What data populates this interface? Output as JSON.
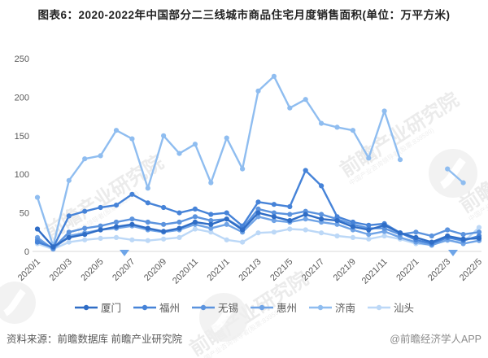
{
  "title": "图表6：2020-2022年中国部分二三线城市商品住宅月度销售面积(单位：万平方米)",
  "footer": {
    "source": "资料来源：前瞻数据库 前瞻产业研究院",
    "credit": "@前瞻经济学人APP"
  },
  "watermark": {
    "main": "前瞻产业研究院",
    "sub": "中国产业咨询领导者(股票:839599)"
  },
  "chart_data": {
    "type": "line",
    "x": [
      "2020/1",
      "2020/2",
      "2020/3",
      "2020/4",
      "2020/5",
      "2020/6",
      "2020/7",
      "2020/8",
      "2020/9",
      "2020/10",
      "2020/11",
      "2020/12",
      "2021/1",
      "2021/2",
      "2021/3",
      "2021/4",
      "2021/5",
      "2021/6",
      "2021/7",
      "2021/8",
      "2021/9",
      "2021/10",
      "2021/11",
      "2021/12",
      "2022/1",
      "2022/2",
      "2022/3",
      "2022/4",
      "2022/5"
    ],
    "tick_labels": [
      "2020/1",
      "2020/3",
      "2020/5",
      "2020/7",
      "2020/9",
      "2020/11",
      "2021/1",
      "2021/3",
      "2021/5",
      "2021/7",
      "2021/9",
      "2021/11",
      "2022/1",
      "2022/3",
      "2022/5"
    ],
    "ylabel": "",
    "xlabel": "",
    "ylim": [
      0,
      250
    ],
    "yticks": [
      0,
      50,
      100,
      150,
      200,
      250
    ],
    "grid": false,
    "legend_position": "bottom",
    "series": [
      {
        "name": "厦门",
        "color": "#2f6dc6",
        "values": [
          29,
          6,
          18,
          22,
          28,
          32,
          35,
          30,
          26,
          30,
          38,
          35,
          42,
          28,
          50,
          45,
          40,
          48,
          42,
          40,
          32,
          28,
          34,
          24,
          18,
          12,
          20,
          16,
          17
        ]
      },
      {
        "name": "福州",
        "color": "#4683d8",
        "values": [
          12,
          5,
          46,
          52,
          57,
          60,
          74,
          63,
          57,
          50,
          55,
          48,
          50,
          33,
          64,
          61,
          58,
          105,
          85,
          45,
          38,
          34,
          36,
          24,
          15,
          10,
          18,
          14,
          20
        ]
      },
      {
        "name": "无锡",
        "color": "#5b93de",
        "values": [
          15,
          4,
          25,
          30,
          33,
          38,
          42,
          38,
          35,
          38,
          45,
          40,
          42,
          30,
          55,
          50,
          48,
          52,
          48,
          42,
          35,
          30,
          30,
          22,
          25,
          20,
          28,
          22,
          25
        ]
      },
      {
        "name": "惠州",
        "color": "#6fa3e6",
        "values": [
          18,
          3,
          20,
          24,
          28,
          30,
          33,
          28,
          25,
          28,
          35,
          30,
          35,
          25,
          45,
          40,
          38,
          42,
          38,
          35,
          28,
          22,
          26,
          18,
          12,
          8,
          15,
          10,
          14
        ]
      },
      {
        "name": "济南",
        "color": "#8fbdf0",
        "values": [
          70,
          7,
          92,
          120,
          124,
          157,
          146,
          82,
          150,
          127,
          139,
          89,
          147,
          107,
          208,
          227,
          186,
          197,
          166,
          161,
          157,
          121,
          182,
          119,
          null,
          null,
          107,
          89,
          null
        ]
      },
      {
        "name": "汕头",
        "color": "#bcd8f7",
        "values": [
          10,
          3,
          12,
          15,
          17,
          18,
          15,
          14,
          16,
          18,
          29,
          25,
          15,
          12,
          24,
          25,
          29,
          28,
          24,
          20,
          18,
          16,
          20,
          16,
          10,
          9,
          14,
          12,
          31
        ]
      }
    ]
  }
}
